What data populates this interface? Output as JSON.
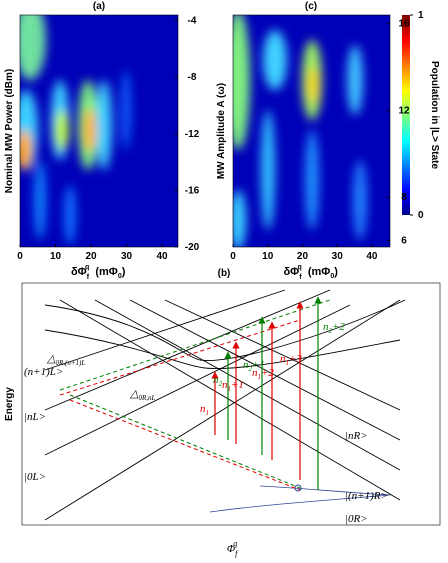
{
  "panels": [
    {
      "label": "(a)",
      "ylabel": "Nominal MW Power (dBm)",
      "xlabel": [
        "δΦ",
        "f",
        "q",
        "(mΦ",
        "0",
        ")"
      ],
      "xlim": [
        0,
        44.5
      ],
      "ylim": [
        -20,
        -3.6
      ],
      "xticks": [
        0,
        10,
        20,
        30,
        40
      ],
      "yticks": [
        -4,
        -8,
        -12,
        -16,
        -20
      ]
    },
    {
      "label": "(c)",
      "ylabel": "MW Amplitude A (ω)",
      "xlabel": [
        "δΦ",
        "f",
        "q",
        "(mΦ",
        "0",
        ")"
      ],
      "xlim": [
        0,
        45.2
      ],
      "ylim": [
        5.7,
        16.4
      ],
      "xticks": [
        0,
        10,
        20,
        30,
        40
      ],
      "yticks": [
        16,
        12,
        8,
        6
      ]
    }
  ],
  "colorbar": {
    "label": "Population in |L> State",
    "ticks": [
      0,
      1
    ],
    "lim": [
      0,
      1
    ]
  },
  "diagram": {
    "label": "(b)",
    "ylabel": "Energy",
    "xlabel": [
      "Φ",
      "f",
      "q"
    ],
    "levels": [
      "|(n+1)R>",
      "|nR>",
      "|0R>",
      "(n+1)L>",
      "|nL>",
      "|0L>"
    ],
    "gaps": [
      [
        "△",
        "0R,(n+1)L"
      ],
      [
        "△",
        "0R,nL"
      ]
    ],
    "transitions": [
      [
        "n",
        "1",
        ""
      ],
      [
        "n",
        "1",
        "+1"
      ],
      [
        "n",
        "1",
        "+2"
      ],
      [
        "n",
        "1",
        "+3"
      ],
      [
        "n",
        "2",
        ""
      ],
      [
        "n",
        "2",
        "+1"
      ],
      [
        "n",
        "2",
        "+2"
      ]
    ]
  }
}
